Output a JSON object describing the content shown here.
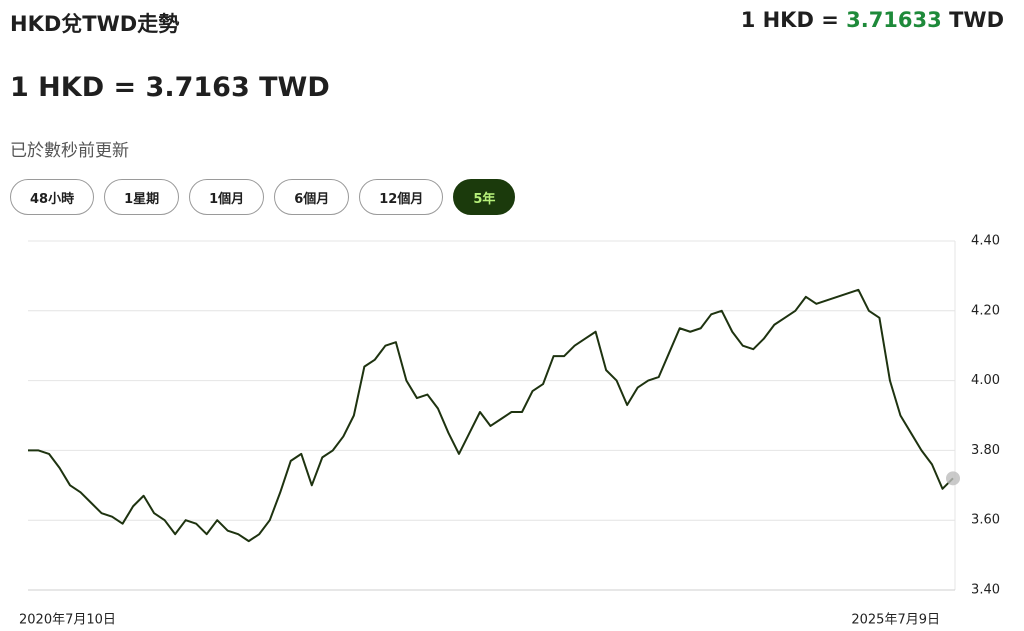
{
  "header": {
    "title": "HKD兌TWD走勢",
    "rate_prefix": "1 HKD =",
    "rate_value": "3.71633",
    "rate_suffix": "TWD"
  },
  "heading": "1 HKD = 3.7163 TWD",
  "updated": "已於數秒前更新",
  "ranges": {
    "labels": [
      "48小時",
      "1星期",
      "1個月",
      "6個月",
      "12個月",
      "5年"
    ],
    "selected": 5
  },
  "chart_data": {
    "type": "line",
    "categories": [
      "2020年7月10日",
      null,
      null,
      null,
      null,
      null,
      null,
      null,
      null,
      null,
      null,
      null,
      null,
      null,
      null,
      null,
      null,
      null,
      null,
      null,
      null,
      null,
      null,
      null,
      null,
      null,
      null,
      null,
      null,
      null,
      null,
      null,
      null,
      null,
      null,
      null,
      null,
      null,
      null,
      null,
      null,
      null,
      null,
      null,
      null,
      null,
      null,
      null,
      null,
      null,
      null,
      null,
      null,
      null,
      null,
      null,
      null,
      null,
      null,
      null,
      null,
      null,
      null,
      null,
      null,
      null,
      null,
      null,
      null,
      null,
      null,
      null,
      null,
      null,
      null,
      null,
      null,
      null,
      null,
      null,
      null,
      null,
      null,
      null,
      null,
      null,
      null,
      null,
      "2025年7月9日"
    ],
    "series": [
      {
        "color": "#1e3310",
        "values": [
          3.8,
          3.8,
          3.79,
          3.75,
          3.7,
          3.68,
          3.65,
          3.62,
          3.61,
          3.59,
          3.64,
          3.67,
          3.62,
          3.6,
          3.56,
          3.6,
          3.59,
          3.56,
          3.6,
          3.57,
          3.56,
          3.54,
          3.56,
          3.6,
          3.68,
          3.77,
          3.79,
          3.7,
          3.78,
          3.8,
          3.84,
          3.9,
          4.04,
          4.06,
          4.1,
          4.11,
          4.0,
          3.95,
          3.96,
          3.92,
          3.85,
          3.79,
          3.85,
          3.91,
          3.87,
          3.89,
          3.91,
          3.91,
          3.97,
          3.99,
          4.07,
          4.07,
          4.1,
          4.12,
          4.14,
          4.03,
          4.0,
          3.93,
          3.98,
          4.0,
          4.01,
          4.08,
          4.15,
          4.14,
          4.15,
          4.19,
          4.2,
          4.14,
          4.1,
          4.09,
          4.12,
          4.16,
          4.18,
          4.2,
          4.24,
          4.22,
          4.23,
          4.24,
          4.25,
          4.26,
          4.2,
          4.18,
          4.0,
          3.9,
          3.85,
          3.8,
          3.76,
          3.69,
          3.72
        ]
      }
    ],
    "ylim": [
      3.4,
      4.4
    ],
    "yticks": [
      {
        "value": 3.4,
        "label": "3.40"
      },
      {
        "value": 3.6,
        "label": "3.60"
      },
      {
        "value": 3.8,
        "label": "3.80"
      },
      {
        "value": 4.0,
        "label": "4.00"
      },
      {
        "value": 4.2,
        "label": "4.20"
      },
      {
        "value": 4.4,
        "label": "4.40"
      }
    ],
    "grid": true
  }
}
